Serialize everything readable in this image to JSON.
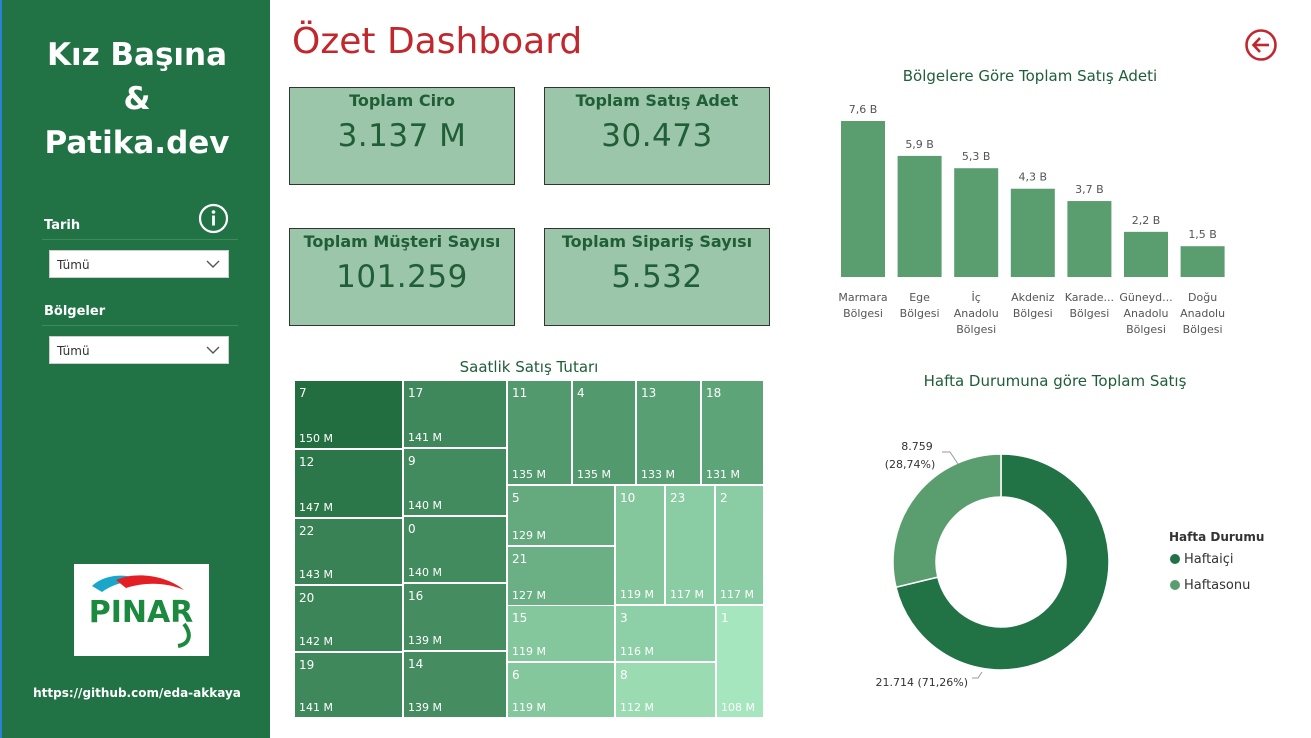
{
  "sidebar": {
    "brand": [
      "Kız Başına",
      "&",
      "Patika.dev"
    ],
    "filters": [
      {
        "label": "Tarih",
        "value": "Tümü"
      },
      {
        "label": "Bölgeler",
        "value": "Tümü"
      }
    ],
    "logo_text": "PINAR",
    "github": "https://github.com/eda-akkaya"
  },
  "header": {
    "title": "Özet Dashboard"
  },
  "kpis": [
    {
      "label": "Toplam Ciro",
      "value": "3.137 M"
    },
    {
      "label": "Toplam Satış Adet",
      "value": "30.473"
    },
    {
      "label": "Toplam Müşteri Sayısı",
      "value": "101.259"
    },
    {
      "label": "Toplam Sipariş Sayısı",
      "value": "5.532"
    }
  ],
  "chart_data": [
    {
      "type": "bar",
      "title": "Bölgelere Göre Toplam Satış Adeti",
      "categories": [
        "Marmara Bölgesi",
        "Ege Bölgesi",
        "İç Anadolu Bölgesi",
        "Akdeniz Bölgesi",
        "Karade... Bölgesi",
        "Güneyd... Anadolu Bölgesi",
        "Doğu Anadolu Bölgesi"
      ],
      "category_lines": [
        [
          "Marmara",
          "Bölgesi"
        ],
        [
          "Ege",
          "Bölgesi"
        ],
        [
          "İç",
          "Anadolu",
          "Bölgesi"
        ],
        [
          "Akdeniz",
          "Bölgesi"
        ],
        [
          "Karade...",
          "Bölgesi"
        ],
        [
          "Güneyd...",
          "Anadolu",
          "Bölgesi"
        ],
        [
          "Doğu",
          "Anadolu",
          "Bölgesi"
        ]
      ],
      "values": [
        7.6,
        5.9,
        5.3,
        4.3,
        3.7,
        2.2,
        1.5
      ],
      "data_labels": [
        "7,6 B",
        "5,9 B",
        "5,3 B",
        "4,3 B",
        "3,7 B",
        "2,2 B",
        "1,5 B"
      ],
      "ylim": [
        0,
        7.6
      ],
      "color": "#5a9e6f"
    },
    {
      "type": "treemap",
      "title": "Saatlik Satış Tutarı",
      "items": [
        {
          "hour": "7",
          "label": "150 M",
          "value": 150
        },
        {
          "hour": "12",
          "label": "147 M",
          "value": 147
        },
        {
          "hour": "22",
          "label": "143 M",
          "value": 143
        },
        {
          "hour": "20",
          "label": "142 M",
          "value": 142
        },
        {
          "hour": "19",
          "label": "141 M",
          "value": 141
        },
        {
          "hour": "17",
          "label": "141 M",
          "value": 141
        },
        {
          "hour": "9",
          "label": "140 M",
          "value": 140
        },
        {
          "hour": "0",
          "label": "140 M",
          "value": 140
        },
        {
          "hour": "16",
          "label": "139 M",
          "value": 139
        },
        {
          "hour": "14",
          "label": "139 M",
          "value": 139
        },
        {
          "hour": "11",
          "label": "135 M",
          "value": 135
        },
        {
          "hour": "4",
          "label": "135 M",
          "value": 135
        },
        {
          "hour": "13",
          "label": "133 M",
          "value": 133
        },
        {
          "hour": "18",
          "label": "131 M",
          "value": 131
        },
        {
          "hour": "5",
          "label": "129 M",
          "value": 129
        },
        {
          "hour": "21",
          "label": "127 M",
          "value": 127
        },
        {
          "hour": "15",
          "label": "119 M",
          "value": 119
        },
        {
          "hour": "6",
          "label": "119 M",
          "value": 119
        },
        {
          "hour": "10",
          "label": "119 M",
          "value": 119
        },
        {
          "hour": "23",
          "label": "117 M",
          "value": 117
        },
        {
          "hour": "2",
          "label": "117 M",
          "value": 117
        },
        {
          "hour": "3",
          "label": "116 M",
          "value": 116
        },
        {
          "hour": "8",
          "label": "112 M",
          "value": 112
        },
        {
          "hour": "1",
          "label": "108 M",
          "value": 108
        }
      ]
    },
    {
      "type": "pie",
      "title": "Hafta Durumuna göre Toplam Satış",
      "legend_title": "Hafta Durumu",
      "slices": [
        {
          "name": "Haftaiçi",
          "value": 21714,
          "label": "21.714 (71,26%)",
          "color": "#217346"
        },
        {
          "name": "Haftasonu",
          "value": 8759,
          "label_value": "8.759",
          "label_pct": "(28,74%)",
          "color": "#5a9e6f"
        }
      ]
    }
  ]
}
